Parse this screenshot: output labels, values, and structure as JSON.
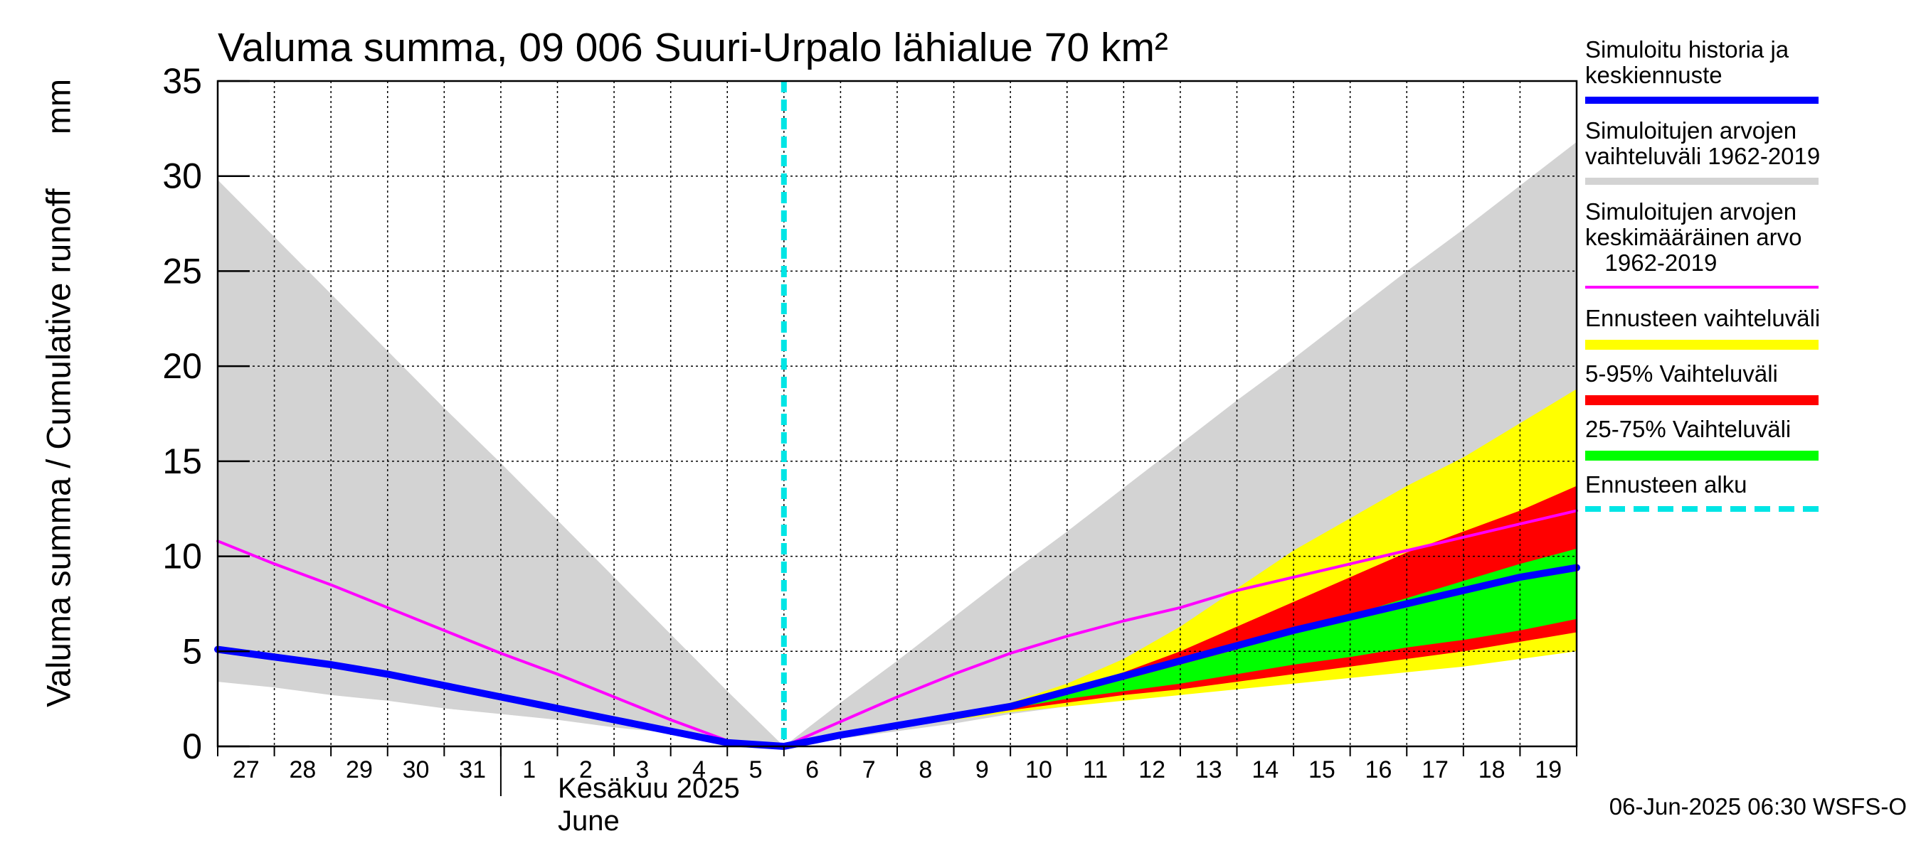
{
  "chart_data": {
    "type": "area",
    "title": "Valuma summa, 09 006 Suuri-Urpalo lähialue 70 km²",
    "ylabel": "Valuma summa / Cumulative runoff",
    "yunit": "mm",
    "ylim": [
      0,
      35
    ],
    "yticks": [
      0,
      5,
      10,
      15,
      20,
      25,
      30,
      35
    ],
    "xlim": [
      "2025-05-27",
      "2025-06-20"
    ],
    "x_tick_labels": [
      "27",
      "28",
      "29",
      "30",
      "31",
      "1",
      "2",
      "3",
      "4",
      "5",
      "6",
      "7",
      "8",
      "9",
      "10",
      "11",
      "12",
      "13",
      "14",
      "15",
      "16",
      "17",
      "18",
      "19"
    ],
    "month_label_fi": "Kesäkuu  2025",
    "month_label_en": "June",
    "forecast_start": "2025-06-06",
    "grid": true,
    "legend_position": "right",
    "x": [
      "2025-05-27",
      "2025-05-28",
      "2025-05-29",
      "2025-05-30",
      "2025-05-31",
      "2025-06-01",
      "2025-06-02",
      "2025-06-03",
      "2025-06-04",
      "2025-06-05",
      "2025-06-06",
      "2025-06-07",
      "2025-06-08",
      "2025-06-09",
      "2025-06-10",
      "2025-06-11",
      "2025-06-12",
      "2025-06-13",
      "2025-06-14",
      "2025-06-15",
      "2025-06-16",
      "2025-06-17",
      "2025-06-18",
      "2025-06-19",
      "2025-06-20"
    ],
    "series": [
      {
        "key": "hist_range",
        "name": "Simuloitujen arvojen vaihteluväli 1962-2019",
        "color": "#d3d3d3",
        "upper": [
          29.8,
          26.8,
          23.8,
          20.8,
          17.8,
          14.9,
          11.9,
          8.9,
          5.9,
          2.9,
          0.0,
          2.3,
          4.5,
          6.8,
          9.1,
          11.3,
          13.6,
          15.9,
          18.2,
          20.4,
          22.7,
          25.0,
          27.2,
          29.5,
          31.8
        ],
        "lower": [
          3.4,
          3.1,
          2.7,
          2.4,
          2.0,
          1.7,
          1.4,
          1.0,
          0.7,
          0.3,
          0.0,
          0.4,
          0.8,
          1.2,
          1.7,
          2.1,
          2.5,
          2.9,
          3.3,
          3.7,
          4.1,
          4.5,
          4.9,
          5.3,
          5.7
        ]
      },
      {
        "key": "fc_range",
        "name": "Ennusteen vaihteluväli",
        "color": "#ffff00",
        "upper": [
          null,
          null,
          null,
          null,
          null,
          null,
          null,
          null,
          null,
          null,
          0.0,
          0.7,
          1.2,
          1.7,
          2.3,
          3.3,
          4.6,
          6.3,
          8.3,
          10.3,
          12.0,
          13.7,
          15.2,
          17.0,
          18.8
        ],
        "lower": [
          null,
          null,
          null,
          null,
          null,
          null,
          null,
          null,
          null,
          null,
          0.0,
          0.6,
          1.0,
          1.4,
          1.8,
          2.1,
          2.4,
          2.7,
          3.0,
          3.3,
          3.6,
          3.9,
          4.2,
          4.6,
          5.0
        ]
      },
      {
        "key": "p5_95",
        "name": "5-95% Vaihteluväli",
        "color": "#ff0000",
        "upper": [
          null,
          null,
          null,
          null,
          null,
          null,
          null,
          null,
          null,
          null,
          0.0,
          0.7,
          1.2,
          1.7,
          2.2,
          3.0,
          3.9,
          5.0,
          6.3,
          7.6,
          8.9,
          10.2,
          11.3,
          12.4,
          13.7
        ],
        "lower": [
          null,
          null,
          null,
          null,
          null,
          null,
          null,
          null,
          null,
          null,
          0.0,
          0.6,
          1.0,
          1.5,
          1.9,
          2.3,
          2.7,
          3.0,
          3.4,
          3.8,
          4.2,
          4.6,
          5.0,
          5.5,
          6.0
        ]
      },
      {
        "key": "p25_75",
        "name": "25-75% Vaihteluväli",
        "color": "#00ff00",
        "upper": [
          null,
          null,
          null,
          null,
          null,
          null,
          null,
          null,
          null,
          null,
          0.0,
          0.7,
          1.1,
          1.6,
          2.1,
          2.8,
          3.5,
          4.3,
          5.1,
          6.0,
          6.9,
          7.8,
          8.7,
          9.6,
          10.4
        ],
        "lower": [
          null,
          null,
          null,
          null,
          null,
          null,
          null,
          null,
          null,
          null,
          0.0,
          0.6,
          1.1,
          1.5,
          2.0,
          2.5,
          2.9,
          3.3,
          3.8,
          4.3,
          4.7,
          5.2,
          5.6,
          6.1,
          6.7
        ]
      },
      {
        "key": "mean",
        "name": "Simuloitujen arvojen keskimääräinen arvo 1962-2019",
        "color": "#ff00ff",
        "values": [
          10.8,
          9.6,
          8.5,
          7.3,
          6.1,
          4.9,
          3.8,
          2.6,
          1.4,
          0.3,
          0.0,
          1.3,
          2.6,
          3.8,
          4.9,
          5.8,
          6.6,
          7.3,
          8.2,
          8.9,
          9.6,
          10.3,
          11.0,
          11.7,
          12.4
        ]
      },
      {
        "key": "history",
        "name": "Simuloitu historia ja keskiennuste",
        "color": "#0000ff",
        "values": [
          5.1,
          4.7,
          4.3,
          3.8,
          3.2,
          2.6,
          2.0,
          1.4,
          0.8,
          0.2,
          0.0,
          0.6,
          1.1,
          1.6,
          2.1,
          2.9,
          3.7,
          4.5,
          5.3,
          6.1,
          6.8,
          7.5,
          8.2,
          8.9,
          9.4
        ]
      }
    ],
    "legend": [
      {
        "label": "Simuloitu historia ja\nkeskiennuste",
        "color": "#0000ff",
        "style": "solid",
        "thickness": 10
      },
      {
        "label": "Simuloitujen arvojen\nvaihteluväli 1962-2019",
        "color": "#d3d3d3",
        "style": "solid",
        "thickness": 10
      },
      {
        "label": "Simuloitujen arvojen\nkeskimääräinen arvo\n   1962-2019",
        "color": "#ff00ff",
        "style": "solid",
        "thickness": 4
      },
      {
        "label": "Ennusteen vaihteluväli",
        "color": "#ffff00",
        "style": "solid",
        "thickness": 14
      },
      {
        "label": "5-95% Vaihteluväli",
        "color": "#ff0000",
        "style": "solid",
        "thickness": 14
      },
      {
        "label": "25-75% Vaihteluväli",
        "color": "#00ff00",
        "style": "solid",
        "thickness": 14
      },
      {
        "label": "Ennusteen alku",
        "color": "#00e5e5",
        "style": "dashed",
        "thickness": 8
      }
    ],
    "footer": "06-Jun-2025 06:30 WSFS-O"
  }
}
